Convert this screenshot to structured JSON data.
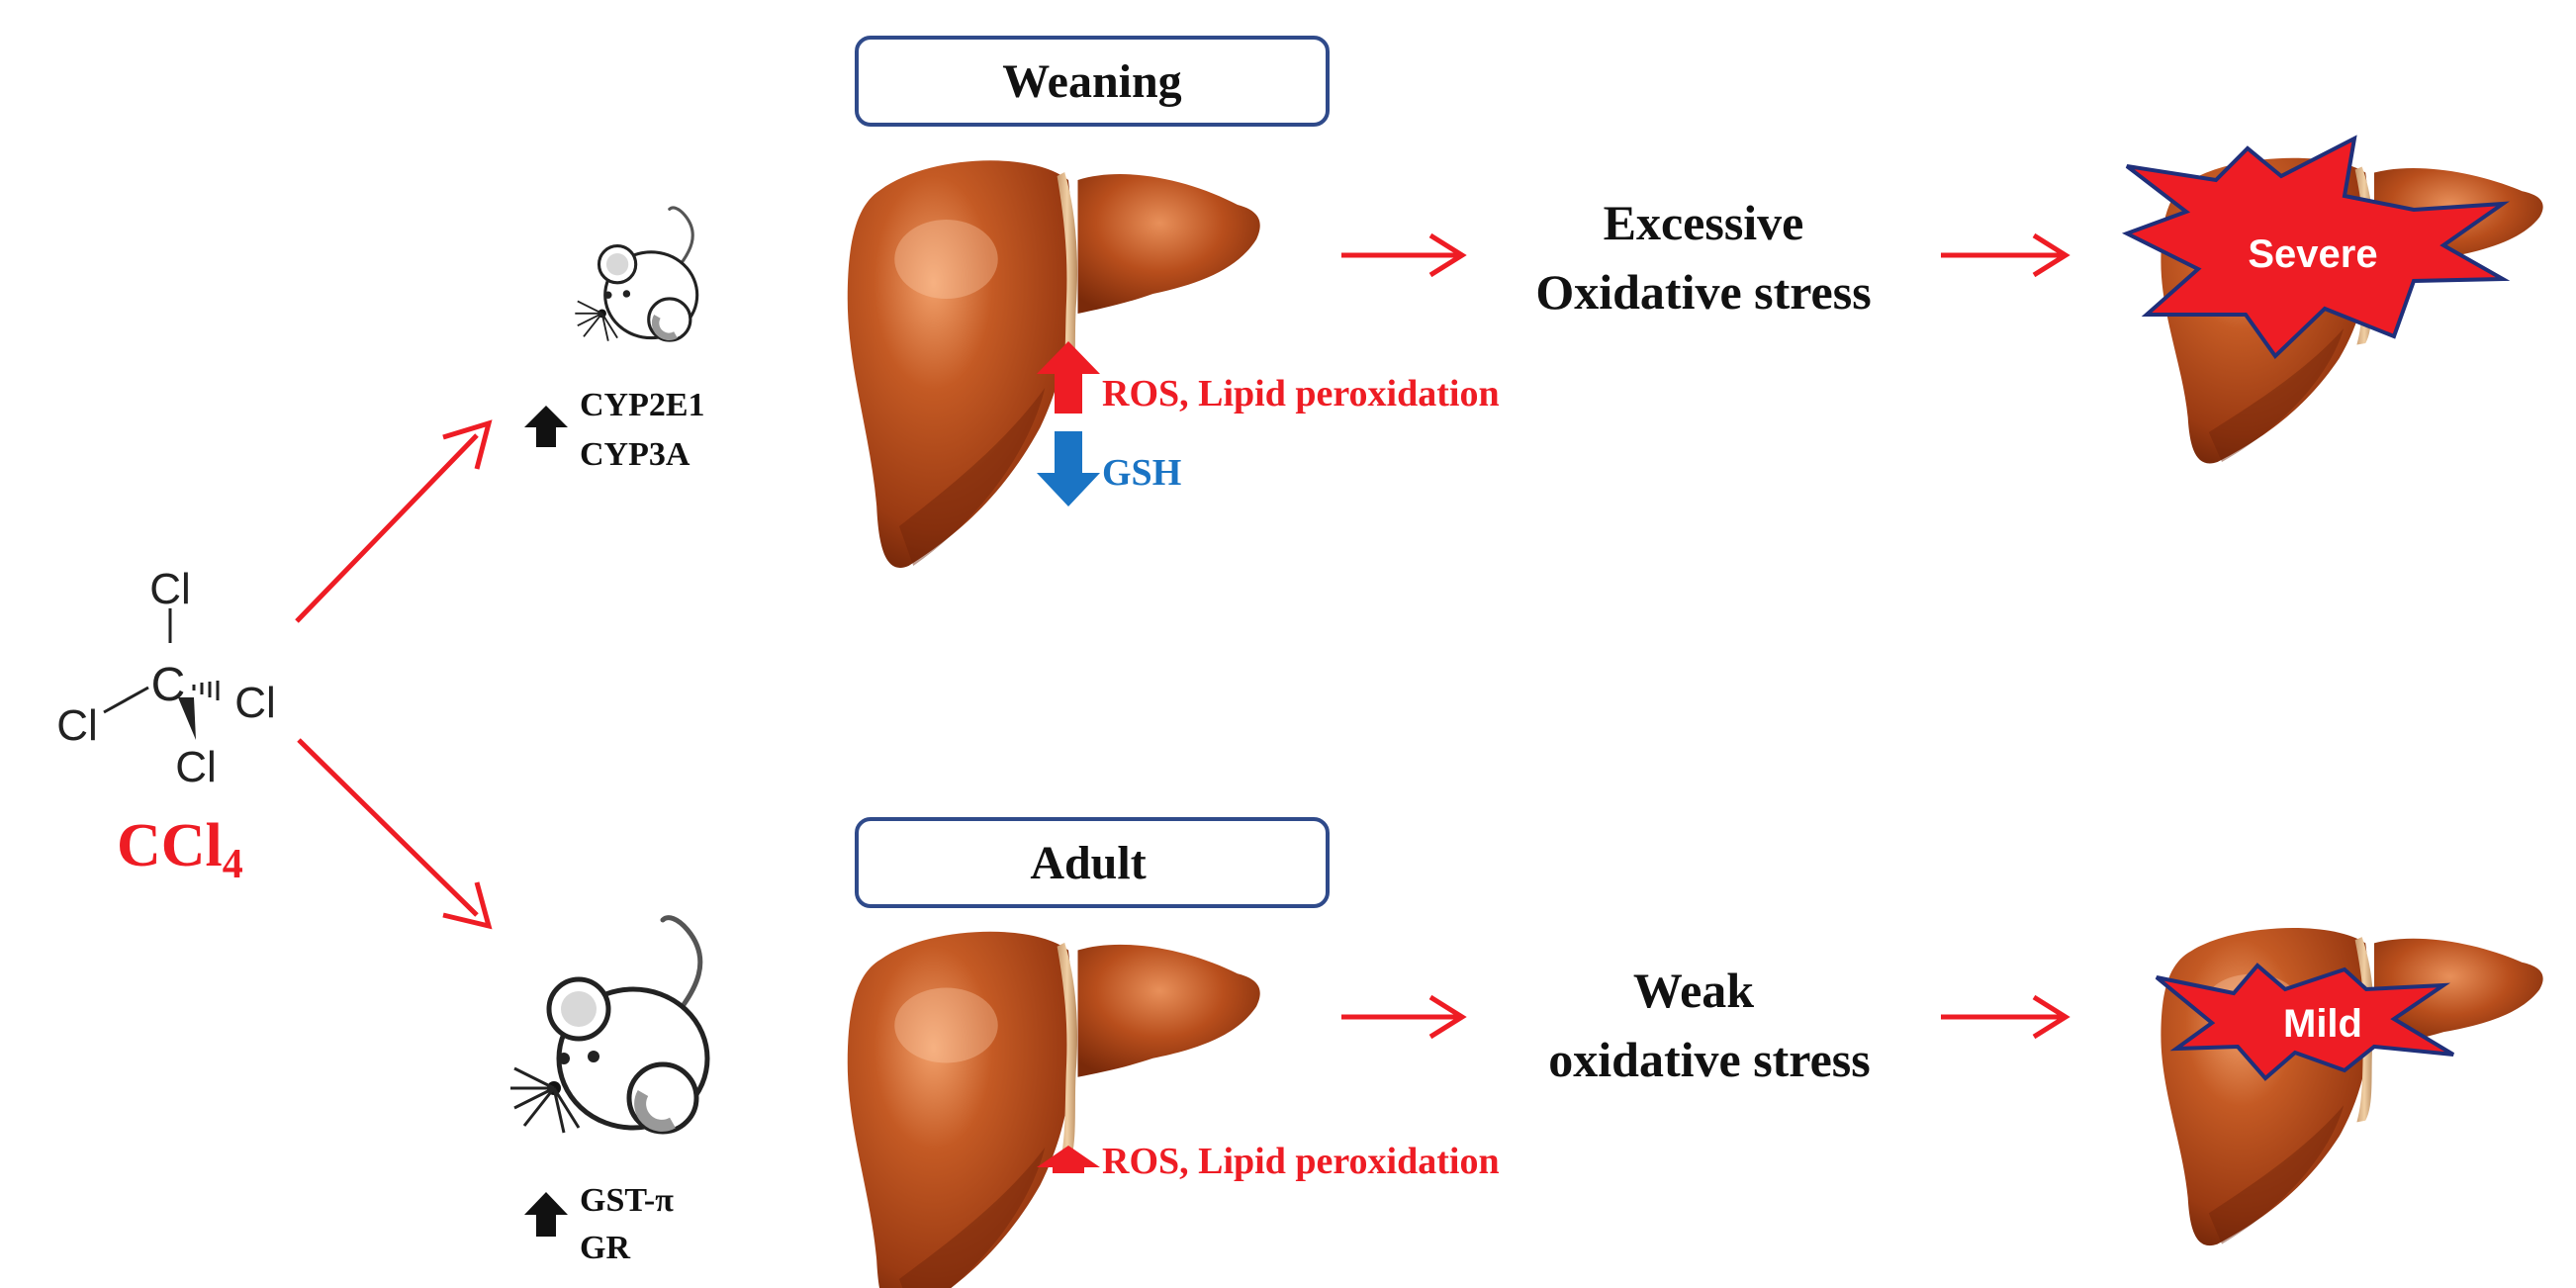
{
  "molecule": {
    "atoms": {
      "center": "C",
      "top": "Cl",
      "left": "Cl",
      "right": "Cl",
      "bottom": "Cl"
    },
    "formula_main": "CCl",
    "formula_sub": "4"
  },
  "weaning": {
    "label": "Weaning",
    "enzymes": [
      "CYP2E1",
      "CYP3A"
    ],
    "up_marker": "ROS, Lipid peroxidation",
    "down_marker": "GSH",
    "stress_lines": [
      "Excessive",
      "Oxidative stress"
    ],
    "outcome": "Severe"
  },
  "adult": {
    "label": "Adult",
    "enzymes": [
      "GST-π",
      "GR"
    ],
    "up_marker": "ROS, Lipid peroxidation",
    "stress_lines": [
      "Weak",
      "oxidative stress"
    ],
    "outcome": "Mild"
  },
  "colors": {
    "red": "#ee1c24",
    "blue": "#1a74c4",
    "liver": "#b2471c",
    "liver_dark": "#7e2b0c",
    "liver_light": "#e88a55",
    "box_border": "#2f4a8a",
    "burst_border": "#1f2f7a",
    "text": "#111111"
  }
}
